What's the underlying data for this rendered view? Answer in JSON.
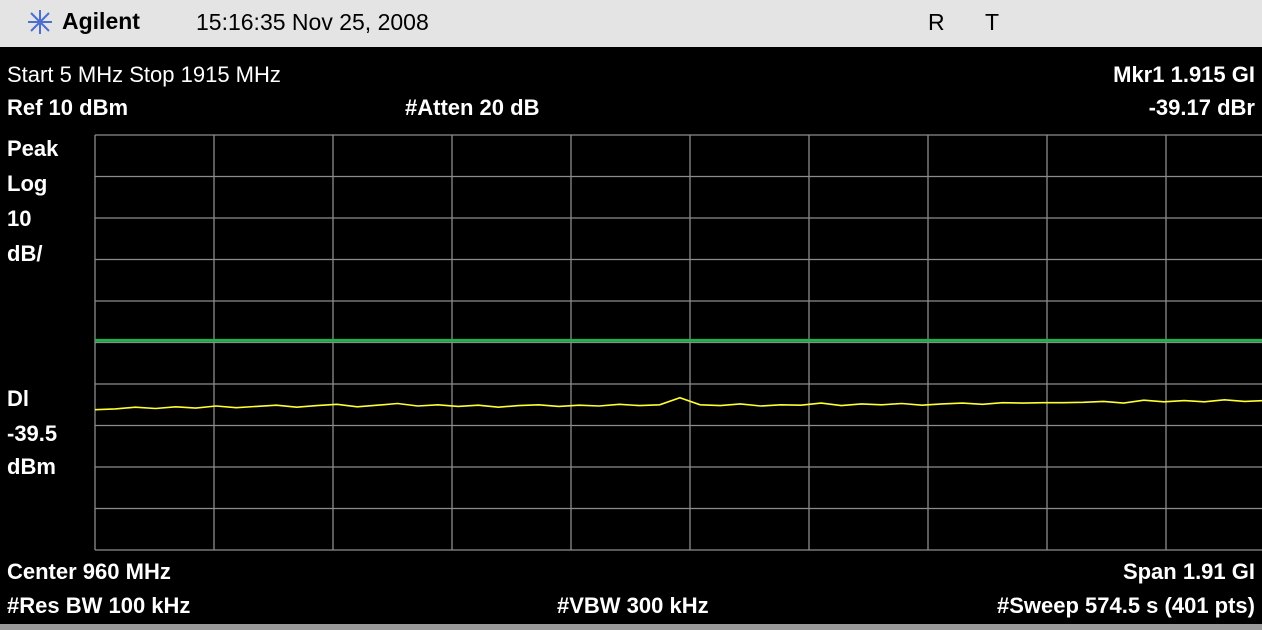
{
  "header": {
    "brand": "Agilent",
    "timestamp": "15:16:35  Nov 25, 2008",
    "status_r": "R",
    "status_t": "T"
  },
  "settings": {
    "freq_range": "Start 5 MHz  Stop 1915 MHz",
    "marker_label": "Mkr1  1.915 GI",
    "reference": "Ref 10 dBm",
    "attenuation": "#Atten 20 dB",
    "marker_value": "-39.17 dBr"
  },
  "left_labels": {
    "detector": "Peak",
    "scale_type": "Log",
    "scale_value": "10",
    "scale_unit": "dB/",
    "display_line_label": "Dl",
    "display_line_unit": "dBm"
  },
  "footer": {
    "center": "Center 960 MHz",
    "span": "Span 1.91 GI",
    "rbw": "#Res BW 100 kHz",
    "vbw": "#VBW 300 kHz",
    "sweep": "#Sweep 574.5 s (401 pts)"
  },
  "screen": {
    "xlim": [
      5,
      1915
    ],
    "xticks": [
      5,
      196,
      387,
      578,
      769,
      960,
      1151,
      1342,
      1533,
      1724,
      1915
    ],
    "ylim": [
      -90,
      10
    ],
    "yticks": [
      -90,
      -80,
      -70,
      -60,
      -50,
      -40,
      -30,
      -20,
      -10,
      0,
      10
    ],
    "display_line": -39.5,
    "display_line_color": "#22b14c",
    "trace_color": "#ffff33",
    "trace": [
      -56.2,
      -56.0,
      -55.6,
      -55.9,
      -55.5,
      -55.8,
      -55.3,
      -55.7,
      -55.4,
      -55.1,
      -55.6,
      -55.2,
      -54.9,
      -55.5,
      -55.1,
      -54.7,
      -55.3,
      -55.0,
      -55.4,
      -55.1,
      -55.6,
      -55.2,
      -55.0,
      -55.4,
      -55.1,
      -55.3,
      -54.9,
      -55.2,
      -55.0,
      -53.3,
      -55.0,
      -55.2,
      -54.8,
      -55.3,
      -55.0,
      -55.1,
      -54.6,
      -55.2,
      -54.8,
      -55.0,
      -54.7,
      -55.1,
      -54.8,
      -54.6,
      -54.9,
      -54.5,
      -54.6,
      -54.5,
      -54.5,
      -54.4,
      -54.2,
      -54.6,
      -53.9,
      -54.3,
      -54.0,
      -54.3,
      -53.8,
      -54.2,
      -54.0,
      -53.9
    ]
  }
}
